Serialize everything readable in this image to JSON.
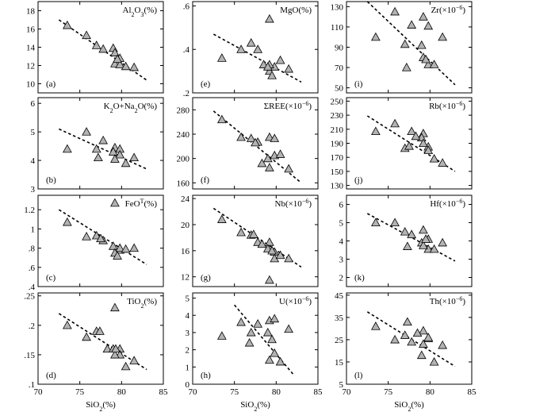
{
  "chart_data": {
    "type": "scatter",
    "x_label_text": "SiO",
    "x_label_sub": "2",
    "x_label_suffix": "(%)",
    "xlim": [
      70,
      85
    ],
    "xticks": [
      70,
      75,
      80,
      85
    ],
    "panels": [
      {
        "id": "a",
        "label": "(a)",
        "t": [
          [
            "Al"
          ],
          [
            "2",
            "sub"
          ],
          [
            "O"
          ],
          [
            "3",
            "sub"
          ],
          [
            "(%)"
          ]
        ],
        "ylim": [
          9,
          19
        ],
        "yticks": [
          10,
          12,
          14,
          16,
          18
        ],
        "x": [
          73.5,
          75.8,
          77,
          77.8,
          79,
          79.2,
          79.8,
          79.2,
          79.8,
          80.5,
          81.5,
          79.5
        ],
        "y": [
          16.4,
          15.3,
          14.2,
          13.8,
          13.9,
          13.4,
          12.8,
          12.2,
          12.1,
          11.9,
          11.8,
          12.7
        ],
        "trend": [
          [
            72.5,
            17.0
          ],
          [
            83,
            10.4
          ]
        ]
      },
      {
        "id": "e",
        "label": "(e)",
        "t": [
          [
            "MgO(%)"
          ]
        ],
        "ylim": [
          0.2,
          0.62
        ],
        "yticks": [
          0.2,
          0.4,
          0.6
        ],
        "x": [
          73.5,
          75.8,
          77,
          77.8,
          78.5,
          79.2,
          79.2,
          79.8,
          79.2,
          80.5,
          81.5,
          79.5,
          79
        ],
        "y": [
          0.36,
          0.4,
          0.43,
          0.4,
          0.33,
          0.54,
          0.3,
          0.32,
          0.33,
          0.35,
          0.31,
          0.28,
          0.32
        ],
        "trend": [
          [
            72.5,
            0.47
          ],
          [
            83,
            0.25
          ]
        ]
      },
      {
        "id": "i",
        "label": "(i)",
        "t": [
          [
            "Zr(×10"
          ],
          [
            "−6",
            "sup"
          ],
          [
            ")"
          ]
        ],
        "ylim": [
          45,
          135
        ],
        "yticks": [
          50,
          70,
          90,
          110,
          130
        ],
        "x": [
          73.5,
          75.8,
          77,
          77.8,
          79.2,
          79.8,
          79,
          79.8,
          79.2,
          80.5,
          81.5,
          79.5,
          77.2
        ],
        "y": [
          100,
          125,
          93,
          112,
          120,
          111,
          92,
          73,
          80,
          73,
          100,
          78,
          70
        ],
        "trend": [
          [
            72.5,
            135
          ],
          [
            83,
            53
          ]
        ]
      },
      {
        "id": "b",
        "label": "(b)",
        "t": [
          [
            "K"
          ],
          [
            "2",
            "sub"
          ],
          [
            "O+Na"
          ],
          [
            "2",
            "sub"
          ],
          [
            "O(%)"
          ]
        ],
        "ylim": [
          3,
          6.2
        ],
        "yticks": [
          3,
          4,
          5,
          6
        ],
        "x": [
          73.5,
          75.8,
          77,
          77.8,
          79.2,
          79.8,
          79,
          79.8,
          79.2,
          80.5,
          81.5,
          77.2
        ],
        "y": [
          4.4,
          5.0,
          4.4,
          4.7,
          4.45,
          4.4,
          4.3,
          4.2,
          4.05,
          3.9,
          4.1,
          4.1
        ],
        "trend": [
          [
            72.5,
            5.1
          ],
          [
            83,
            3.7
          ]
        ]
      },
      {
        "id": "f",
        "label": "(f)",
        "t": [
          [
            "ΣREE(×10"
          ],
          [
            "−6",
            "sup"
          ],
          [
            ")"
          ]
        ],
        "ylim": [
          150,
          300
        ],
        "yticks": [
          160,
          200,
          240,
          280
        ],
        "x": [
          73.5,
          75.8,
          77,
          77.8,
          79.2,
          79.8,
          79,
          79.8,
          79.2,
          80.5,
          81.5,
          78.3,
          77.5
        ],
        "y": [
          264,
          235,
          233,
          227,
          235,
          205,
          200,
          233,
          185,
          207,
          183,
          192,
          226
        ],
        "trend": [
          [
            72.5,
            278
          ],
          [
            83,
            160
          ]
        ]
      },
      {
        "id": "j",
        "label": "(j)",
        "t": [
          [
            "Rb(×10"
          ],
          [
            "−6",
            "sup"
          ],
          [
            ")"
          ]
        ],
        "ylim": [
          125,
          255
        ],
        "yticks": [
          130,
          150,
          170,
          190,
          210,
          230,
          250
        ],
        "x": [
          73.5,
          75.8,
          77,
          77.8,
          79.2,
          79.8,
          79,
          79.8,
          79.2,
          80.5,
          81.5,
          78.3,
          77.5
        ],
        "y": [
          207,
          218,
          183,
          207,
          204,
          185,
          198,
          180,
          190,
          168,
          162,
          200,
          186
        ],
        "trend": [
          [
            72.5,
            229
          ],
          [
            83,
            150
          ]
        ]
      },
      {
        "id": "c",
        "label": "(c)",
        "t": [
          [
            "FeO"
          ],
          [
            "T",
            "sup"
          ],
          [
            "(%)"
          ]
        ],
        "ylim": [
          0.4,
          1.35
        ],
        "yticks": [
          0.4,
          0.6,
          0.8,
          1.0,
          1.2
        ],
        "x": [
          73.5,
          75.8,
          77,
          77.8,
          79.2,
          79.8,
          79,
          79.8,
          79.2,
          80.5,
          81.5,
          79.5,
          77.5
        ],
        "y": [
          1.07,
          0.92,
          0.93,
          0.88,
          1.27,
          0.78,
          0.82,
          0.8,
          0.75,
          0.79,
          0.8,
          0.72,
          0.9
        ],
        "trend": [
          [
            72.5,
            1.2
          ],
          [
            83,
            0.63
          ]
        ]
      },
      {
        "id": "g",
        "label": "(g)",
        "t": [
          [
            "Nb(×10"
          ],
          [
            "−6",
            "sup"
          ],
          [
            ")"
          ]
        ],
        "ylim": [
          10.5,
          24.5
        ],
        "yticks": [
          12,
          16,
          20,
          24
        ],
        "x": [
          73.5,
          75.8,
          77,
          77.8,
          79.2,
          79.8,
          79,
          79.8,
          79.2,
          80.5,
          81.5,
          79.5,
          78.3,
          77.3
        ],
        "y": [
          20.8,
          18.8,
          18.4,
          17.3,
          17.3,
          15.8,
          16.3,
          14.8,
          11.5,
          15.3,
          14.8,
          16.0,
          17.0,
          18.5
        ],
        "trend": [
          [
            72.5,
            22.5
          ],
          [
            83,
            13.5
          ]
        ]
      },
      {
        "id": "k",
        "label": "(k)",
        "t": [
          [
            "Hf(×10"
          ],
          [
            "−6",
            "sup"
          ],
          [
            ")"
          ]
        ],
        "ylim": [
          1.5,
          6.5
        ],
        "yticks": [
          2,
          3,
          4,
          5,
          6
        ],
        "x": [
          73.5,
          75.8,
          77,
          77.8,
          79.2,
          79.8,
          79,
          79.8,
          79.2,
          80.5,
          81.5,
          77.3,
          79.5
        ],
        "y": [
          5.0,
          5.0,
          4.5,
          4.35,
          4.6,
          4.1,
          3.9,
          3.55,
          3.75,
          3.55,
          3.9,
          3.7,
          4.1
        ],
        "trend": [
          [
            72.5,
            5.5
          ],
          [
            83,
            2.9
          ]
        ]
      },
      {
        "id": "d",
        "label": "(d)",
        "t": [
          [
            "TiO"
          ],
          [
            "2",
            "sub"
          ],
          [
            "(%)"
          ]
        ],
        "ylim": [
          0.1,
          0.255
        ],
        "yticks": [
          0.1,
          0.15,
          0.2,
          0.25
        ],
        "x": [
          73.5,
          75.8,
          77,
          77.4,
          78.3,
          79.2,
          79.8,
          79,
          79.8,
          79.2,
          80.5,
          81.5,
          79.3
        ],
        "y": [
          0.2,
          0.18,
          0.19,
          0.19,
          0.16,
          0.23,
          0.16,
          0.16,
          0.15,
          0.15,
          0.13,
          0.14,
          0.16
        ],
        "trend": [
          [
            72.5,
            0.22
          ],
          [
            83,
            0.125
          ]
        ]
      },
      {
        "id": "h",
        "label": "(h)",
        "t": [
          [
            "U(×10"
          ],
          [
            "−6",
            "sup"
          ],
          [
            ")"
          ]
        ],
        "ylim": [
          0,
          5.3
        ],
        "yticks": [
          0,
          1,
          2,
          3,
          4,
          5
        ],
        "x": [
          73.5,
          75.8,
          77,
          77.8,
          79.2,
          79.8,
          79,
          79.8,
          79.2,
          80.5,
          81.5,
          76.8,
          79.5
        ],
        "y": [
          2.8,
          3.6,
          3.0,
          3.5,
          3.7,
          3.8,
          3.0,
          1.8,
          1.4,
          1.3,
          3.2,
          2.4,
          2.6
        ],
        "trend": [
          [
            75,
            4.6
          ],
          [
            82,
            0.6
          ]
        ]
      },
      {
        "id": "l",
        "label": "(l)",
        "t": [
          [
            "Th(×10"
          ],
          [
            "−6",
            "sup"
          ],
          [
            ")"
          ]
        ],
        "ylim": [
          5,
          46
        ],
        "yticks": [
          5,
          15,
          25,
          35,
          45
        ],
        "x": [
          73.5,
          75.8,
          77,
          77.8,
          79.2,
          79.8,
          79,
          79.8,
          79.2,
          80.5,
          81.5,
          77.3,
          78.5
        ],
        "y": [
          31,
          25,
          27,
          24,
          29,
          25.5,
          18,
          26,
          23,
          15,
          22.5,
          33,
          28
        ],
        "trend": [
          [
            72.5,
            37.5
          ],
          [
            83,
            13
          ]
        ]
      }
    ]
  }
}
